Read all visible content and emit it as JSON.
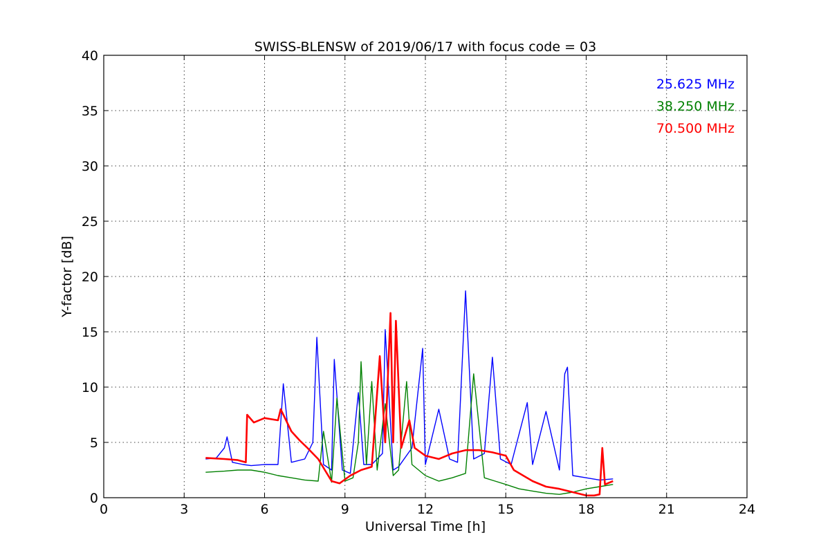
{
  "chart_data": {
    "type": "line",
    "title": "SWISS-BLENSW of 2019/06/17 with focus code = 03",
    "xlabel": "Universal Time [h]",
    "ylabel": "Y-factor [dB]",
    "xlim": [
      0,
      24
    ],
    "ylim": [
      0,
      40
    ],
    "xticks": [
      0,
      3,
      6,
      9,
      12,
      15,
      18,
      21,
      24
    ],
    "yticks": [
      0,
      5,
      10,
      15,
      20,
      25,
      30,
      35,
      40
    ],
    "grid": true,
    "legend_position": "top-right",
    "series": [
      {
        "name": "25.625 MHz",
        "color": "#0000ff",
        "x": [
          3.8,
          4.2,
          4.5,
          4.6,
          4.8,
          5.2,
          5.5,
          6.0,
          6.5,
          6.7,
          7.0,
          7.5,
          7.8,
          7.95,
          8.2,
          8.5,
          8.6,
          8.9,
          9.2,
          9.5,
          9.7,
          10.0,
          10.4,
          10.5,
          10.8,
          11.0,
          11.5,
          11.9,
          12.0,
          12.5,
          12.9,
          13.2,
          13.5,
          13.8,
          14.2,
          14.5,
          14.8,
          15.2,
          15.8,
          16.0,
          16.5,
          17.0,
          17.2,
          17.3,
          17.5,
          18.0,
          18.5,
          19.0
        ],
        "values": [
          3.5,
          3.6,
          4.5,
          5.5,
          3.2,
          3.0,
          2.9,
          3.0,
          3.0,
          10.3,
          3.2,
          3.5,
          5.0,
          14.5,
          3.0,
          2.5,
          12.5,
          2.5,
          2.2,
          9.5,
          3.0,
          3.0,
          4.0,
          15.2,
          2.5,
          2.8,
          4.5,
          13.5,
          3.0,
          8.0,
          3.5,
          3.2,
          18.7,
          3.5,
          4.0,
          12.7,
          3.5,
          3.0,
          8.6,
          3.0,
          7.8,
          2.5,
          11.2,
          11.8,
          2.0,
          1.8,
          1.6,
          1.7
        ]
      },
      {
        "name": "38.250 MHz",
        "color": "#008000",
        "x": [
          3.8,
          4.5,
          5.0,
          5.5,
          6.0,
          6.5,
          7.0,
          7.5,
          8.0,
          8.2,
          8.5,
          8.7,
          9.0,
          9.3,
          9.5,
          9.6,
          9.8,
          10.0,
          10.2,
          10.5,
          10.8,
          11.0,
          11.3,
          11.5,
          12.0,
          12.5,
          13.0,
          13.5,
          13.8,
          14.2,
          14.6,
          15.0,
          15.5,
          16.0,
          16.5,
          17.0,
          17.5,
          18.0,
          18.5,
          19.0
        ],
        "values": [
          2.3,
          2.4,
          2.5,
          2.5,
          2.3,
          2.0,
          1.8,
          1.6,
          1.5,
          6.0,
          1.4,
          9.0,
          1.5,
          1.8,
          5.0,
          12.3,
          3.0,
          10.5,
          2.5,
          8.5,
          2.0,
          2.5,
          10.5,
          3.0,
          2.0,
          1.5,
          1.8,
          2.2,
          11.2,
          1.8,
          1.5,
          1.2,
          0.8,
          0.6,
          0.4,
          0.3,
          0.5,
          0.8,
          1.0,
          1.2
        ]
      },
      {
        "name": "70.500 MHz",
        "color": "#ff0000",
        "x": [
          3.8,
          4.5,
          5.0,
          5.3,
          5.35,
          5.6,
          6.0,
          6.5,
          6.6,
          7.0,
          7.3,
          7.6,
          8.0,
          8.5,
          8.8,
          9.2,
          9.6,
          10.0,
          10.3,
          10.5,
          10.7,
          10.8,
          10.9,
          11.1,
          11.4,
          11.6,
          12.0,
          12.5,
          13.0,
          13.5,
          14.0,
          14.5,
          15.0,
          15.3,
          16.0,
          16.5,
          17.0,
          17.5,
          18.0,
          18.3,
          18.5,
          18.6,
          18.7,
          19.0
        ],
        "values": [
          3.6,
          3.5,
          3.4,
          3.2,
          7.5,
          6.8,
          7.2,
          7.0,
          8.0,
          6.0,
          5.2,
          4.5,
          3.5,
          1.5,
          1.3,
          2.0,
          2.5,
          2.8,
          12.8,
          5.0,
          16.7,
          5.0,
          16.0,
          4.5,
          7.0,
          4.5,
          3.8,
          3.5,
          4.0,
          4.3,
          4.3,
          4.1,
          3.8,
          2.5,
          1.5,
          1.0,
          0.8,
          0.5,
          0.2,
          0.2,
          0.3,
          4.5,
          1.2,
          1.5
        ]
      }
    ]
  }
}
